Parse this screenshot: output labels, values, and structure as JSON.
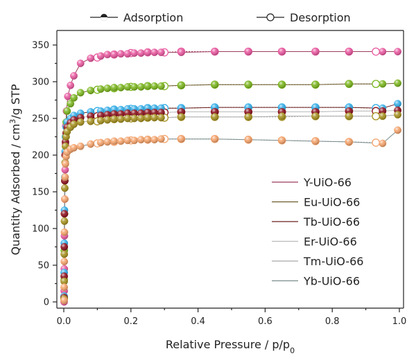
{
  "chart_data": {
    "type": "scatter",
    "xlabel_main": "Relative Pressure / p/p",
    "xlabel_sub": "0",
    "ylabel_pre": "Quantity Adsorbed / cm",
    "ylabel_sup": "3",
    "ylabel_post": "/g STP",
    "xlim": [
      0,
      1.0
    ],
    "ylim": [
      -10,
      370
    ],
    "xticks": [
      {
        "v": 0.0,
        "label": "0.0"
      },
      {
        "v": 0.2,
        "label": "0.2"
      },
      {
        "v": 0.4,
        "label": "0.4"
      },
      {
        "v": 0.6,
        "label": "0.6"
      },
      {
        "v": 0.8,
        "label": "0.8"
      },
      {
        "v": 1.0,
        "label": "1.0"
      }
    ],
    "yticks": [
      {
        "v": 0,
        "label": "0"
      },
      {
        "v": 50,
        "label": "50"
      },
      {
        "v": 100,
        "label": "100"
      },
      {
        "v": 150,
        "label": "150"
      },
      {
        "v": 200,
        "label": "200"
      },
      {
        "v": 250,
        "label": "250"
      },
      {
        "v": 300,
        "label": "300"
      },
      {
        "v": 350,
        "label": "350"
      }
    ],
    "branch_legend": [
      {
        "label": "Adsorption",
        "marker": "filled"
      },
      {
        "label": "Desorption",
        "marker": "open"
      }
    ],
    "legend_position": "center-right",
    "series": [
      {
        "name": "Y-UiO-66",
        "color": "#e8589f",
        "line_color": "#9c3b5a",
        "adsorption": [
          [
            0.001,
            0
          ],
          [
            0.0012,
            15
          ],
          [
            0.0015,
            45
          ],
          [
            0.002,
            90
          ],
          [
            0.003,
            140
          ],
          [
            0.004,
            180
          ],
          [
            0.005,
            215
          ],
          [
            0.006,
            240
          ],
          [
            0.008,
            260
          ],
          [
            0.012,
            280
          ],
          [
            0.02,
            295
          ],
          [
            0.03,
            308
          ],
          [
            0.05,
            325
          ],
          [
            0.08,
            332
          ],
          [
            0.11,
            335
          ],
          [
            0.13,
            337
          ],
          [
            0.15,
            337
          ],
          [
            0.17,
            338
          ],
          [
            0.19,
            338
          ],
          [
            0.21,
            339
          ],
          [
            0.23,
            339
          ],
          [
            0.25,
            340
          ],
          [
            0.27,
            340
          ],
          [
            0.29,
            340
          ],
          [
            0.35,
            340
          ],
          [
            0.45,
            341
          ],
          [
            0.55,
            341
          ],
          [
            0.65,
            341
          ],
          [
            0.75,
            341
          ],
          [
            0.85,
            341
          ],
          [
            0.95,
            341
          ],
          [
            0.995,
            341
          ]
        ],
        "desorption": [
          [
            0.93,
            341
          ],
          [
            0.85,
            341
          ],
          [
            0.75,
            341
          ],
          [
            0.65,
            341
          ],
          [
            0.55,
            341
          ],
          [
            0.45,
            341
          ],
          [
            0.35,
            341
          ],
          [
            0.3,
            340
          ],
          [
            0.25,
            340
          ],
          [
            0.2,
            339
          ],
          [
            0.15,
            337
          ],
          [
            0.1,
            333
          ]
        ]
      },
      {
        "name": "Eu-UiO-66",
        "color": "#7ab51d",
        "line_color": "#6b5a2a",
        "adsorption": [
          [
            0.001,
            5
          ],
          [
            0.0012,
            30
          ],
          [
            0.0015,
            70
          ],
          [
            0.002,
            120
          ],
          [
            0.003,
            165
          ],
          [
            0.004,
            200
          ],
          [
            0.005,
            225
          ],
          [
            0.007,
            245
          ],
          [
            0.01,
            260
          ],
          [
            0.02,
            270
          ],
          [
            0.03,
            278
          ],
          [
            0.05,
            285
          ],
          [
            0.08,
            288
          ],
          [
            0.11,
            290
          ],
          [
            0.13,
            291
          ],
          [
            0.15,
            292
          ],
          [
            0.17,
            292
          ],
          [
            0.19,
            293
          ],
          [
            0.21,
            293
          ],
          [
            0.23,
            293
          ],
          [
            0.25,
            294
          ],
          [
            0.27,
            294
          ],
          [
            0.29,
            294
          ],
          [
            0.35,
            295
          ],
          [
            0.45,
            296
          ],
          [
            0.55,
            296
          ],
          [
            0.65,
            296
          ],
          [
            0.75,
            296
          ],
          [
            0.85,
            297
          ],
          [
            0.95,
            297
          ],
          [
            0.995,
            298
          ]
        ],
        "desorption": [
          [
            0.93,
            297
          ],
          [
            0.85,
            297
          ],
          [
            0.75,
            296
          ],
          [
            0.65,
            296
          ],
          [
            0.55,
            296
          ],
          [
            0.45,
            296
          ],
          [
            0.35,
            295
          ],
          [
            0.3,
            294
          ],
          [
            0.25,
            294
          ],
          [
            0.2,
            293
          ],
          [
            0.15,
            291
          ],
          [
            0.1,
            289
          ]
        ]
      },
      {
        "name": "Tb-UiO-66",
        "color": "#33aee8",
        "line_color": "#6a1e1e",
        "adsorption": [
          [
            0.001,
            8
          ],
          [
            0.0012,
            40
          ],
          [
            0.0015,
            80
          ],
          [
            0.002,
            125
          ],
          [
            0.003,
            170
          ],
          [
            0.004,
            205
          ],
          [
            0.005,
            225
          ],
          [
            0.007,
            238
          ],
          [
            0.01,
            245
          ],
          [
            0.02,
            250
          ],
          [
            0.03,
            254
          ],
          [
            0.05,
            257
          ],
          [
            0.08,
            259
          ],
          [
            0.11,
            260
          ],
          [
            0.13,
            261
          ],
          [
            0.15,
            262
          ],
          [
            0.17,
            262
          ],
          [
            0.19,
            263
          ],
          [
            0.21,
            263
          ],
          [
            0.23,
            263
          ],
          [
            0.25,
            264
          ],
          [
            0.27,
            264
          ],
          [
            0.29,
            264
          ],
          [
            0.35,
            264
          ],
          [
            0.45,
            265
          ],
          [
            0.55,
            265
          ],
          [
            0.65,
            265
          ],
          [
            0.75,
            265
          ],
          [
            0.85,
            265
          ],
          [
            0.95,
            264
          ],
          [
            0.995,
            270
          ]
        ],
        "desorption": [
          [
            0.93,
            264
          ],
          [
            0.85,
            265
          ],
          [
            0.75,
            265
          ],
          [
            0.65,
            265
          ],
          [
            0.55,
            265
          ],
          [
            0.45,
            265
          ],
          [
            0.35,
            264
          ],
          [
            0.3,
            264
          ],
          [
            0.25,
            264
          ],
          [
            0.2,
            263
          ],
          [
            0.15,
            262
          ],
          [
            0.1,
            260
          ]
        ]
      },
      {
        "name": "Er-UiO-66",
        "color": "#8b0f1c",
        "line_color": "#b9b9b9",
        "adsorption": [
          [
            0.001,
            6
          ],
          [
            0.0012,
            35
          ],
          [
            0.0015,
            75
          ],
          [
            0.002,
            120
          ],
          [
            0.003,
            165
          ],
          [
            0.004,
            200
          ],
          [
            0.005,
            218
          ],
          [
            0.007,
            230
          ],
          [
            0.01,
            238
          ],
          [
            0.02,
            244
          ],
          [
            0.03,
            248
          ],
          [
            0.05,
            251
          ],
          [
            0.08,
            253
          ],
          [
            0.11,
            254
          ],
          [
            0.13,
            255
          ],
          [
            0.15,
            256
          ],
          [
            0.17,
            256
          ],
          [
            0.19,
            257
          ],
          [
            0.21,
            257
          ],
          [
            0.23,
            257
          ],
          [
            0.25,
            258
          ],
          [
            0.27,
            258
          ],
          [
            0.29,
            258
          ],
          [
            0.35,
            259
          ],
          [
            0.45,
            259
          ],
          [
            0.55,
            259
          ],
          [
            0.65,
            259
          ],
          [
            0.75,
            259
          ],
          [
            0.85,
            260
          ],
          [
            0.95,
            260
          ],
          [
            0.995,
            261
          ]
        ],
        "desorption": [
          [
            0.93,
            260
          ],
          [
            0.85,
            260
          ],
          [
            0.75,
            259
          ],
          [
            0.65,
            259
          ],
          [
            0.55,
            259
          ],
          [
            0.45,
            259
          ],
          [
            0.35,
            259
          ],
          [
            0.3,
            258
          ],
          [
            0.25,
            258
          ],
          [
            0.2,
            257
          ],
          [
            0.15,
            256
          ],
          [
            0.1,
            253
          ]
        ]
      },
      {
        "name": "Tm-UiO-66",
        "color": "#a5901f",
        "line_color": "#a8a8a8",
        "adsorption": [
          [
            0.001,
            4
          ],
          [
            0.0012,
            28
          ],
          [
            0.0015,
            65
          ],
          [
            0.002,
            110
          ],
          [
            0.003,
            155
          ],
          [
            0.004,
            190
          ],
          [
            0.005,
            212
          ],
          [
            0.007,
            225
          ],
          [
            0.01,
            232
          ],
          [
            0.02,
            238
          ],
          [
            0.03,
            242
          ],
          [
            0.05,
            245
          ],
          [
            0.08,
            246
          ],
          [
            0.11,
            247
          ],
          [
            0.13,
            248
          ],
          [
            0.15,
            249
          ],
          [
            0.17,
            249
          ],
          [
            0.19,
            250
          ],
          [
            0.21,
            250
          ],
          [
            0.23,
            250
          ],
          [
            0.25,
            251
          ],
          [
            0.27,
            251
          ],
          [
            0.29,
            251
          ],
          [
            0.35,
            252
          ],
          [
            0.45,
            252
          ],
          [
            0.55,
            252
          ],
          [
            0.65,
            253
          ],
          [
            0.75,
            253
          ],
          [
            0.85,
            253
          ],
          [
            0.95,
            253
          ],
          [
            0.995,
            255
          ]
        ],
        "desorption": [
          [
            0.93,
            253
          ],
          [
            0.85,
            253
          ],
          [
            0.75,
            253
          ],
          [
            0.65,
            252
          ],
          [
            0.55,
            252
          ],
          [
            0.45,
            252
          ],
          [
            0.35,
            252
          ],
          [
            0.3,
            251
          ],
          [
            0.25,
            251
          ],
          [
            0.2,
            250
          ],
          [
            0.15,
            249
          ],
          [
            0.1,
            246
          ]
        ]
      },
      {
        "name": "Yb-UiO-66",
        "color": "#f4a26a",
        "line_color": "#7a8b8b",
        "adsorption": [
          [
            0.001,
            2
          ],
          [
            0.0012,
            20
          ],
          [
            0.0015,
            55
          ],
          [
            0.002,
            95
          ],
          [
            0.003,
            140
          ],
          [
            0.004,
            170
          ],
          [
            0.005,
            188
          ],
          [
            0.007,
            198
          ],
          [
            0.01,
            204
          ],
          [
            0.02,
            208
          ],
          [
            0.03,
            210
          ],
          [
            0.05,
            212
          ],
          [
            0.08,
            215
          ],
          [
            0.11,
            217
          ],
          [
            0.13,
            218
          ],
          [
            0.15,
            219
          ],
          [
            0.17,
            219
          ],
          [
            0.19,
            220
          ],
          [
            0.21,
            220
          ],
          [
            0.23,
            221
          ],
          [
            0.25,
            221
          ],
          [
            0.27,
            221
          ],
          [
            0.29,
            222
          ],
          [
            0.35,
            222
          ],
          [
            0.45,
            222
          ],
          [
            0.55,
            221
          ],
          [
            0.65,
            220
          ],
          [
            0.75,
            219
          ],
          [
            0.85,
            218
          ],
          [
            0.95,
            216
          ],
          [
            0.995,
            234
          ]
        ],
        "desorption": [
          [
            0.93,
            217
          ],
          [
            0.85,
            218
          ],
          [
            0.75,
            219
          ],
          [
            0.65,
            220
          ],
          [
            0.55,
            221
          ],
          [
            0.45,
            222
          ],
          [
            0.35,
            222
          ],
          [
            0.3,
            222
          ],
          [
            0.25,
            221
          ],
          [
            0.2,
            220
          ],
          [
            0.15,
            218
          ],
          [
            0.1,
            216
          ]
        ]
      }
    ]
  }
}
